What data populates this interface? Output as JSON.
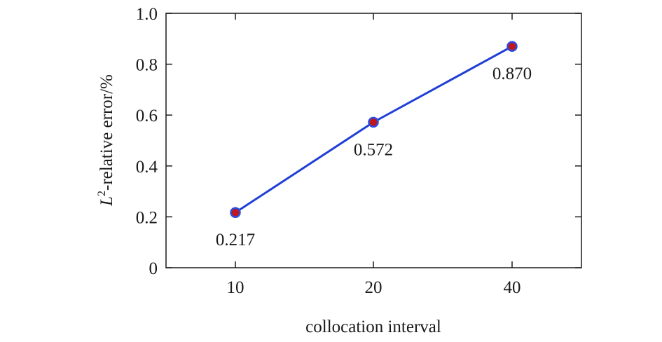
{
  "chart_data": {
    "type": "line",
    "categories": [
      "10",
      "20",
      "40"
    ],
    "values": [
      0.217,
      0.572,
      0.87
    ],
    "data_labels": [
      "0.217",
      "0.572",
      "0.870"
    ],
    "xlabel": "collocation interval",
    "ylabel": {
      "symbol": "L",
      "superscript": "2",
      "text": "-relative error/%"
    },
    "ylim": [
      0,
      1.0
    ],
    "yticks": [
      0,
      0.2,
      0.4,
      0.6,
      0.8,
      1.0
    ],
    "ytick_labels": [
      "0",
      "0.2",
      "0.4",
      "0.6",
      "0.8",
      "1.0"
    ],
    "grid": false,
    "legend": "none",
    "colors": {
      "line": "#1f3fd6",
      "marker_fill": "#c0161c",
      "marker_edge": "#2b4ee0",
      "axis": "#1a1a1a"
    }
  }
}
